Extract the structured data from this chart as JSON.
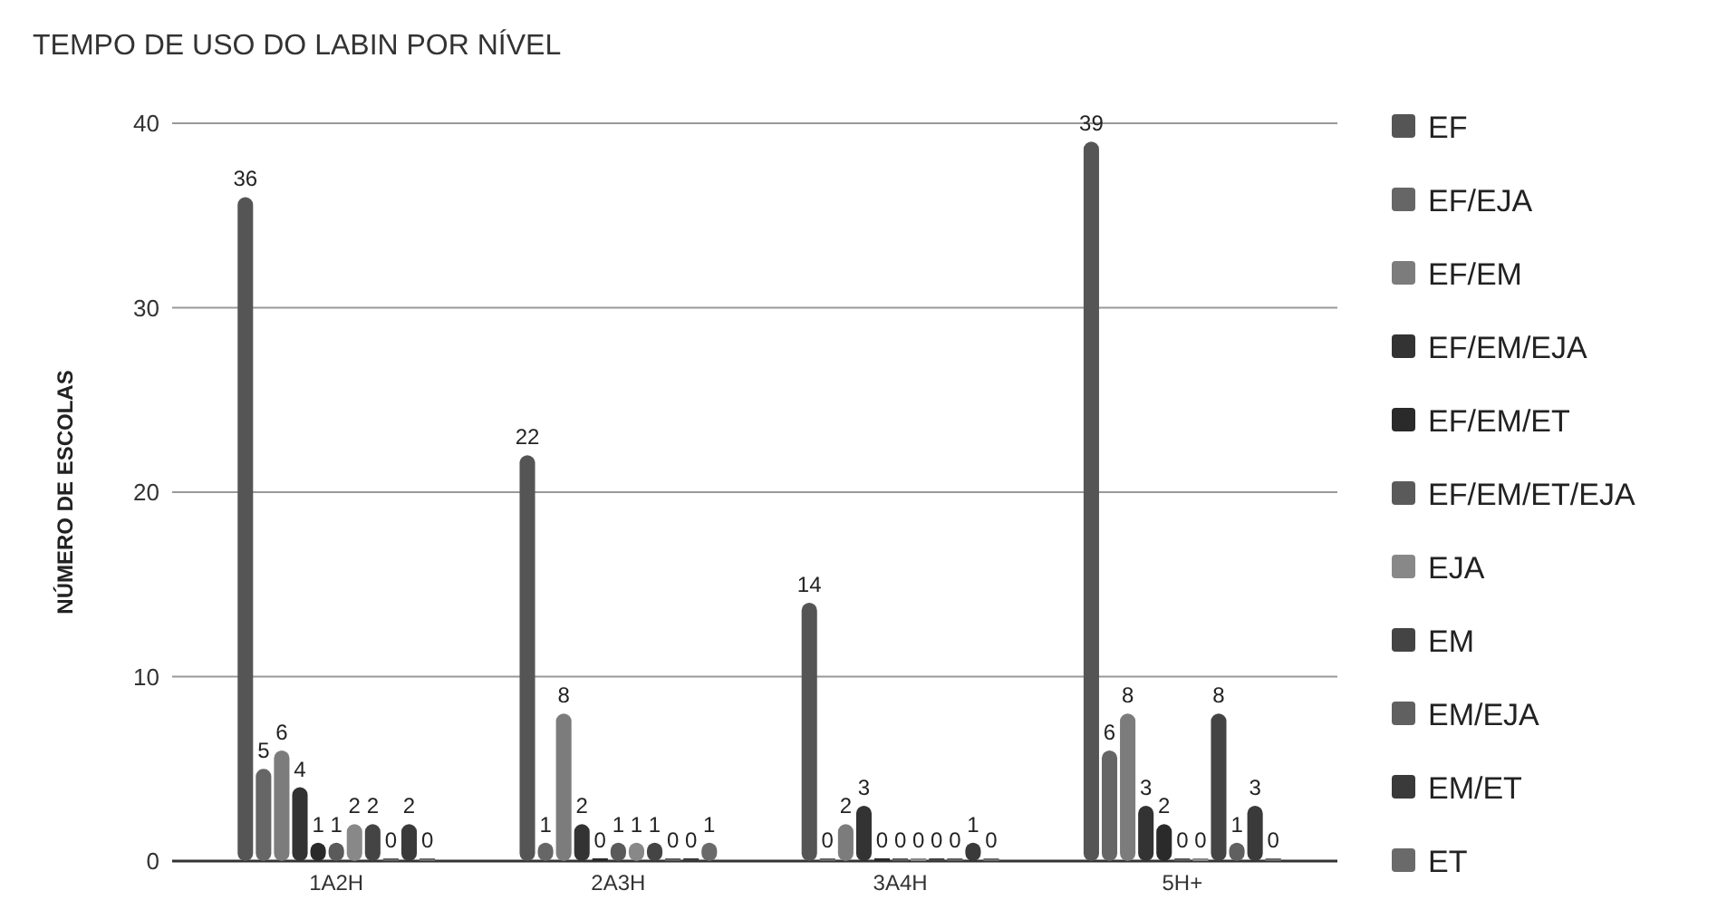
{
  "chart_data": {
    "type": "bar",
    "title": "TEMPO DE USO DO LABIN POR NÍVEL",
    "ylabel": "NÚMERO DE ESCOLAS",
    "categories": [
      "1A2H",
      "2A3H",
      "3A4H",
      "5H+"
    ],
    "series": [
      {
        "name": "EF",
        "color": "#555555",
        "values": [
          36,
          22,
          14,
          39
        ]
      },
      {
        "name": "EF/EJA",
        "color": "#666666",
        "values": [
          5,
          1,
          0,
          6
        ]
      },
      {
        "name": "EF/EM",
        "color": "#7c7c7c",
        "values": [
          6,
          8,
          2,
          8
        ]
      },
      {
        "name": "EF/EM/EJA",
        "color": "#333333",
        "values": [
          4,
          2,
          3,
          3
        ]
      },
      {
        "name": "EF/EM/ET",
        "color": "#2a2a2a",
        "values": [
          1,
          0,
          0,
          2
        ]
      },
      {
        "name": "EF/EM/ET/EJA",
        "color": "#5a5a5a",
        "values": [
          1,
          1,
          0,
          0
        ]
      },
      {
        "name": "EJA",
        "color": "#888888",
        "values": [
          2,
          1,
          0,
          0
        ]
      },
      {
        "name": "EM",
        "color": "#444444",
        "values": [
          2,
          1,
          0,
          8
        ]
      },
      {
        "name": "EM/EJA",
        "color": "#606060",
        "values": [
          0,
          0,
          0,
          1
        ]
      },
      {
        "name": "EM/ET",
        "color": "#3a3a3a",
        "values": [
          2,
          0,
          1,
          3
        ]
      },
      {
        "name": "ET",
        "color": "#6a6a6a",
        "values": [
          0,
          1,
          0,
          0
        ]
      }
    ],
    "ylim": [
      0,
      40
    ],
    "yticks": [
      0,
      10,
      20,
      30,
      40
    ],
    "grid": "y",
    "legend": "right",
    "data_labels": true
  }
}
